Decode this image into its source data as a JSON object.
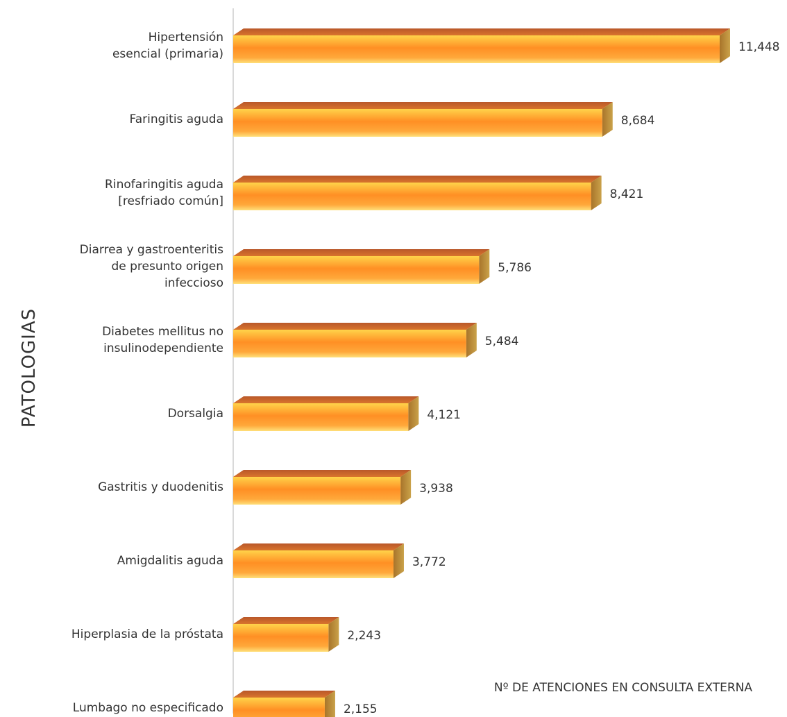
{
  "chart_data": {
    "type": "bar",
    "orientation": "horizontal",
    "categories": [
      [
        "Hipertensión",
        "esencial (primaria)"
      ],
      [
        "Faringitis aguda"
      ],
      [
        "Rinofaringitis aguda",
        "[resfriado común]"
      ],
      [
        "Diarrea y gastroenteritis",
        "de presunto origen",
        "infeccioso"
      ],
      [
        "Diabetes mellitus no",
        "insulinodependiente"
      ],
      [
        "Dorsalgia"
      ],
      [
        "Gastritis y duodenitis"
      ],
      [
        "Amigdalitis aguda"
      ],
      [
        "Hiperplasia de la próstata"
      ],
      [
        "Lumbago no especificado"
      ]
    ],
    "values": [
      11448,
      8684,
      8421,
      5786,
      5484,
      4121,
      3938,
      3772,
      2243,
      2155
    ],
    "value_labels": [
      "11,448",
      "8,684",
      "8,421",
      "5,786",
      "5,484",
      "4,121",
      "3,938",
      "3,772",
      "2,243",
      "2,155"
    ],
    "xlabel": "Nº DE ATENCIONES EN CONSULTA EXTERNA",
    "ylabel": "PATOLOGIAS",
    "xlim": [
      0,
      11448
    ],
    "grid": false,
    "style": "3d-bar",
    "colors": {
      "bar_top": "#ffd34a",
      "bar_mid": "#ff9a2a",
      "bar_bottom": "#ffd866",
      "bar_top_face": "#c8622a",
      "bar_side": "#b88a2e",
      "axis": "#d9d9d9"
    }
  }
}
